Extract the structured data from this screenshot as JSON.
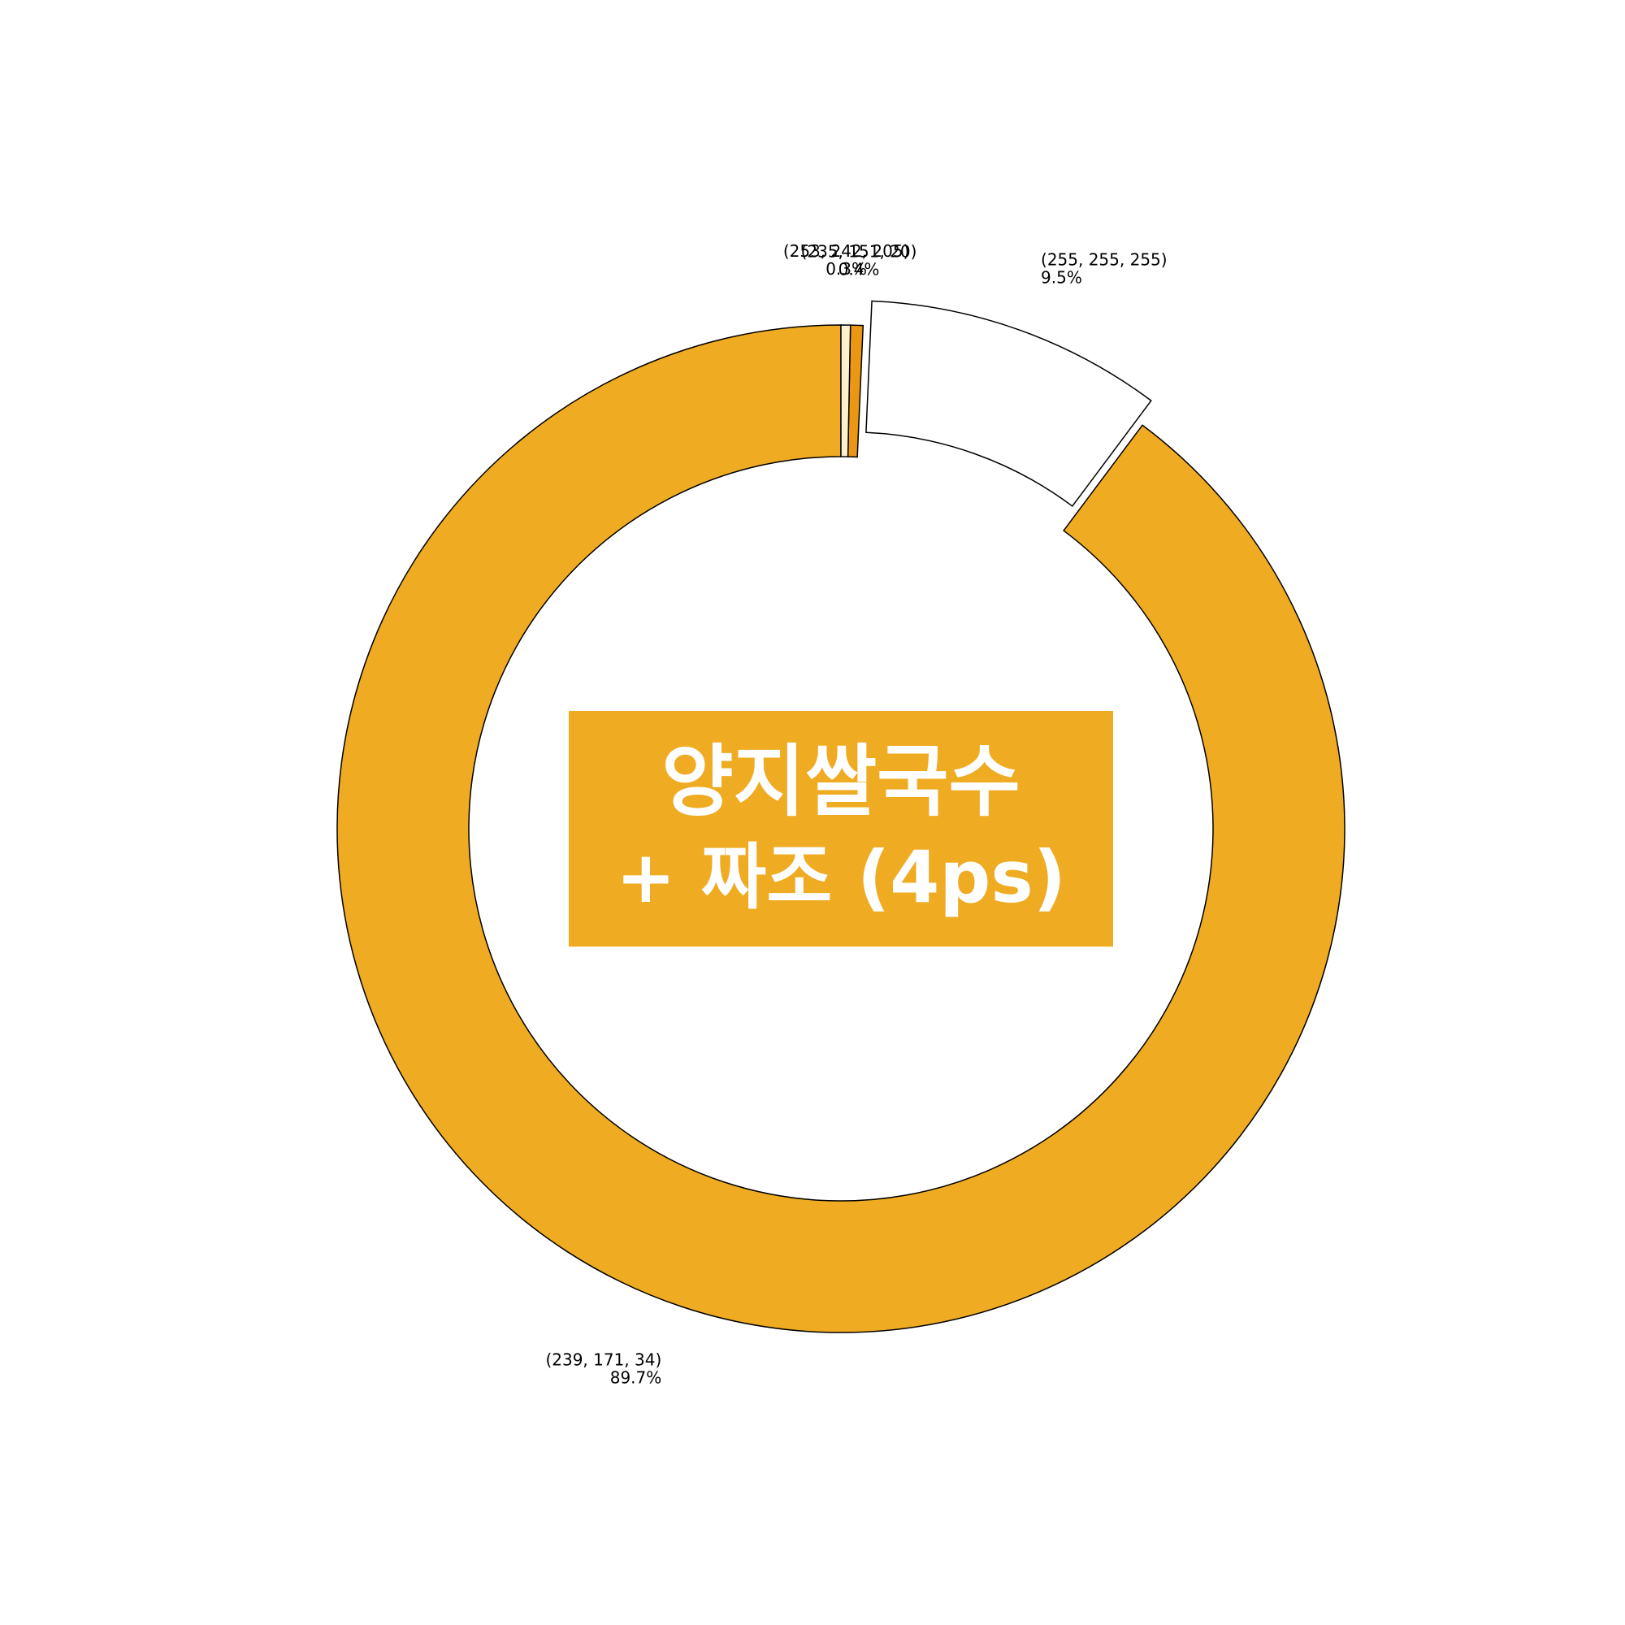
{
  "chart_data": {
    "type": "pie",
    "donut": true,
    "start_angle_deg": 90,
    "direction": "counterclockwise",
    "slices": [
      {
        "label": "(239, 171, 34)",
        "value": 89.7,
        "pct_label": "89.7%",
        "color": "#efab22"
      },
      {
        "label": "(255, 255, 255)",
        "value": 9.5,
        "pct_label": "9.5%",
        "color": "#ffffff",
        "exploded": true
      },
      {
        "label": "(235, 151, 20)",
        "value": 0.4,
        "pct_label": "0.4%",
        "color": "#eb9714"
      },
      {
        "label": "(253, 242, 205)",
        "value": 0.3,
        "pct_label": "0.3%",
        "color": "#fdf2cd"
      }
    ],
    "center_image": {
      "line1": "양지쌀국수",
      "line2": "+ 짜조 (4ps)",
      "background": "#efab22"
    }
  }
}
